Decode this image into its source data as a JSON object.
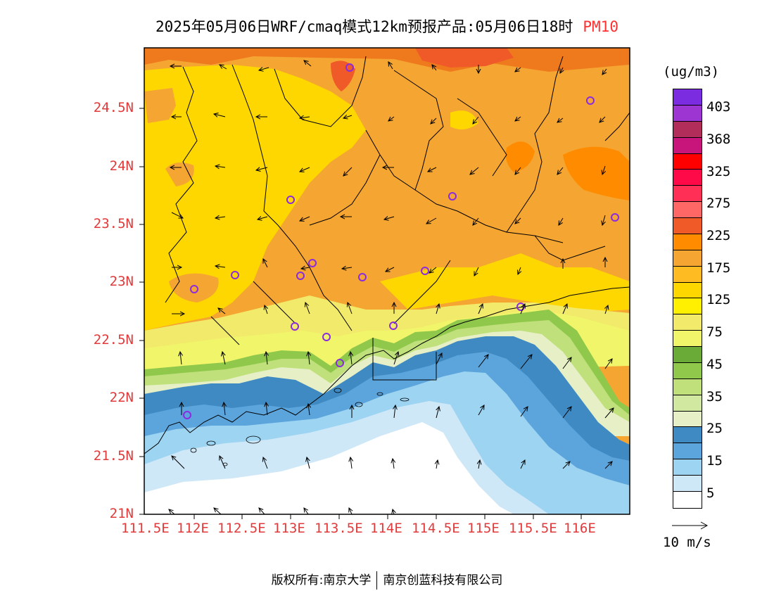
{
  "title": {
    "main": "2025年05月06日WRF/cmaq模式12km预报产品:05月06日18时",
    "pollutant": "PM10"
  },
  "lat_ticks": [
    "24.5N",
    "24N",
    "23.5N",
    "23N",
    "22.5N",
    "22N",
    "21.5N",
    "21N"
  ],
  "lon_ticks": [
    "111.5E",
    "112E",
    "112.5E",
    "113E",
    "113.5E",
    "114E",
    "114.5E",
    "115E",
    "115.5E",
    "116E"
  ],
  "legend": {
    "units": "(ug/m3)",
    "labels": [
      "403",
      "368",
      "325",
      "275",
      "225",
      "175",
      "125",
      "75",
      "45",
      "35",
      "25",
      "15",
      "5"
    ],
    "colors": [
      "#7b2be0",
      "#9d35d2",
      "#b32d5a",
      "#c8157c",
      "#ff0000",
      "#ff0a48",
      "#ff2f55",
      "#ff6666",
      "#ef5a28",
      "#ff8c00",
      "#f5a532",
      "#ffbb22",
      "#ffd700",
      "#ffef00",
      "#f2ea6a",
      "#f1f56a",
      "#6aab38",
      "#8fc84a",
      "#bfe07a",
      "#d1e8a0",
      "#e6efc6",
      "#3f8ac2",
      "#5ca5dc",
      "#9cd4f2",
      "#cfe8f8",
      "#ffffff"
    ]
  },
  "wind": {
    "label": "10 m/s"
  },
  "credit": {
    "left": "版权所有:南京大学",
    "right": "南京创蓝科技有限公司"
  }
}
